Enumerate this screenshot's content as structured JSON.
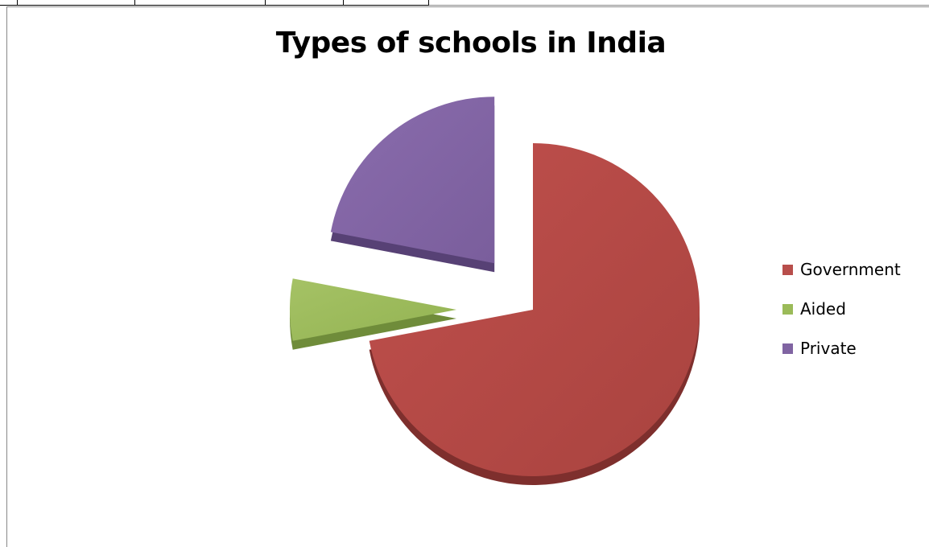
{
  "chart_data": {
    "type": "pie",
    "title": "Types of schools in India",
    "categories": [
      "Government",
      "Aided",
      "Private"
    ],
    "values": [
      72,
      6,
      22
    ],
    "exploded": true,
    "three_d": true,
    "legend_position": "right",
    "series": [
      {
        "name": "Government",
        "value": 72,
        "color": "#b84e4b",
        "color_dark": "#7e2f2d"
      },
      {
        "name": "Aided",
        "value": 6,
        "color": "#9bbb59",
        "color_dark": "#6f8c3a"
      },
      {
        "name": "Private",
        "value": 22,
        "color": "#8064a2",
        "color_dark": "#574175"
      }
    ]
  }
}
